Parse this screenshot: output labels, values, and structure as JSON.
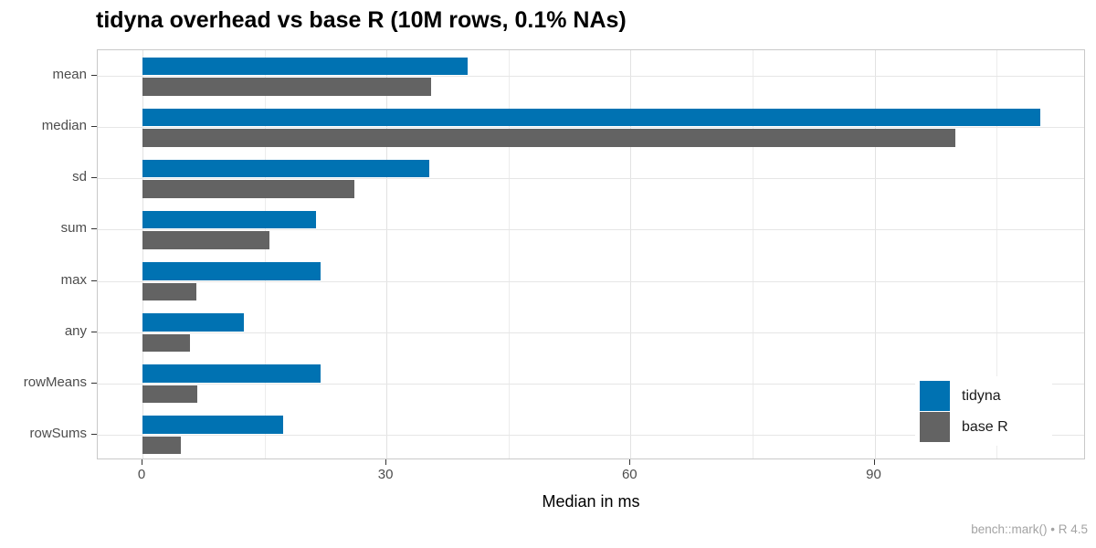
{
  "chart_data": {
    "type": "bar",
    "orientation": "horizontal",
    "title": "tidyna overhead vs base R (10M rows, 0.1% NAs)",
    "xlabel": "Median in ms",
    "ylabel": "",
    "caption": "bench::mark() • R 4.5",
    "categories": [
      "mean",
      "median",
      "sd",
      "sum",
      "max",
      "any",
      "rowMeans",
      "rowSums"
    ],
    "series": [
      {
        "name": "tidyna",
        "color": "#0072B2",
        "values": [
          40.0,
          110.4,
          35.2,
          21.3,
          21.9,
          12.5,
          21.9,
          17.3
        ]
      },
      {
        "name": "base R",
        "color": "#636363",
        "values": [
          35.5,
          99.9,
          26.0,
          15.6,
          6.6,
          5.8,
          6.7,
          4.7
        ]
      }
    ],
    "xlim": [
      -5.5,
      116
    ],
    "x_major_ticks": [
      0,
      30,
      60,
      90
    ],
    "x_minor_ticks": [
      15,
      45,
      75,
      105
    ],
    "grid": true,
    "legend_position": "inside-right"
  },
  "colors": {
    "tidyna": "#0072B2",
    "base_r": "#636363",
    "grid_major": "#e2e2e2",
    "grid_minor": "#ececec",
    "panel_border": "#c9c9c9",
    "tick_mark": "#333333",
    "tick_label": "#4d4d4d",
    "caption_text": "#a3a3a3"
  }
}
